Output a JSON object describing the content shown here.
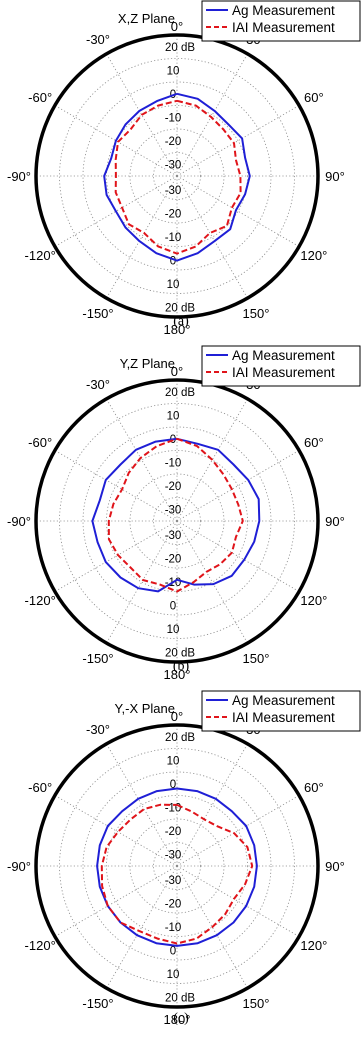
{
  "figure": {
    "captions": [
      "(a)",
      "(b)",
      "(c)"
    ]
  },
  "colors": {
    "ag": "#1f1fd6",
    "iai": "#e0141a",
    "grid": "#8a8a8a",
    "frame": "#000000"
  },
  "chart_data": [
    {
      "type": "polar",
      "title": "X,Z Plane",
      "angle_unit": "degrees",
      "angle_ticks": [
        "0°",
        "30°",
        "60°",
        "90°",
        "120°",
        "150°",
        "180°",
        "-150°",
        "-120°",
        "-90°",
        "-60°",
        "-30°"
      ],
      "radial_ticks_upper": [
        "20 dB",
        "10",
        "0",
        "-10",
        "-20",
        "-30"
      ],
      "radial_ticks_lower": [
        "-30",
        "-20",
        "-10",
        "0",
        "10",
        "20 dB"
      ],
      "rlim": [
        -40,
        20
      ],
      "grid": true,
      "legend_position": "top-right",
      "theta": [
        0,
        15,
        30,
        45,
        60,
        75,
        90,
        105,
        120,
        135,
        150,
        165,
        180,
        195,
        210,
        225,
        240,
        255,
        270,
        285,
        300,
        315,
        330,
        345
      ],
      "series": [
        {
          "name": "Ag Measurement",
          "color": "blue",
          "linestyle": "solid",
          "values": [
            -5,
            -6,
            -8,
            -9,
            -8,
            -10,
            -9,
            -10,
            -11,
            -8,
            -8,
            -6,
            -4,
            -6,
            -8,
            -9,
            -10,
            -9,
            -9,
            -11,
            -10,
            -9,
            -8,
            -7
          ]
        },
        {
          "name": "IAI Measurement",
          "color": "red",
          "linestyle": "dashed",
          "values": [
            -8,
            -9,
            -11,
            -12,
            -12,
            -14,
            -13,
            -12,
            -13,
            -10,
            -12,
            -9,
            -7,
            -9,
            -12,
            -11,
            -13,
            -13,
            -14,
            -13,
            -11,
            -12,
            -10,
            -9
          ]
        }
      ]
    },
    {
      "type": "polar",
      "title": "Y,Z Plane",
      "angle_unit": "degrees",
      "angle_ticks": [
        "0°",
        "30°",
        "60°",
        "90°",
        "120°",
        "150°",
        "180°",
        "-150°",
        "-120°",
        "-90°",
        "-60°",
        "-30°"
      ],
      "radial_ticks_upper": [
        "20 dB",
        "10",
        "0",
        "-10",
        "-20",
        "-30"
      ],
      "radial_ticks_lower": [
        "-30",
        "-20",
        "-10",
        "0",
        "10",
        "20 dB"
      ],
      "rlim": [
        -40,
        20
      ],
      "grid": true,
      "legend_position": "top-right",
      "theta": [
        0,
        15,
        30,
        45,
        60,
        75,
        90,
        105,
        120,
        135,
        150,
        165,
        180,
        195,
        210,
        225,
        240,
        255,
        270,
        285,
        300,
        315,
        330,
        345
      ],
      "series": [
        {
          "name": "Ag Measurement",
          "color": "blue",
          "linestyle": "solid",
          "values": [
            -5,
            -6,
            -5,
            -6,
            -5,
            -4,
            -5,
            -6,
            -7,
            -7,
            -9,
            -12,
            -15,
            -9,
            -7,
            -6,
            -5,
            -5,
            -4,
            -6,
            -5,
            -6,
            -5,
            -5
          ]
        },
        {
          "name": "IAI Measurement",
          "color": "red",
          "linestyle": "dashed",
          "values": [
            -5,
            -7,
            -10,
            -12,
            -13,
            -13,
            -12,
            -14,
            -13,
            -14,
            -15,
            -13,
            -10,
            -12,
            -11,
            -12,
            -11,
            -10,
            -11,
            -12,
            -13,
            -11,
            -9,
            -7
          ]
        }
      ]
    },
    {
      "type": "polar",
      "title": "Y,-X Plane",
      "angle_unit": "degrees",
      "angle_ticks": [
        "0°",
        "30°",
        "60°",
        "90°",
        "120°",
        "150°",
        "180°",
        "-150°",
        "-120°",
        "-90°",
        "-60°",
        "-30°"
      ],
      "radial_ticks_upper": [
        "20 dB",
        "10",
        "0",
        "-10",
        "-20",
        "-30"
      ],
      "radial_ticks_lower": [
        "-30",
        "-20",
        "-10",
        "0",
        "10",
        "20 dB"
      ],
      "rlim": [
        -40,
        20
      ],
      "grid": true,
      "legend_position": "top-right",
      "theta": [
        0,
        15,
        30,
        45,
        60,
        75,
        90,
        105,
        120,
        135,
        150,
        165,
        180,
        195,
        210,
        225,
        240,
        255,
        270,
        285,
        300,
        315,
        330,
        345
      ],
      "series": [
        {
          "name": "Ag Measurement",
          "color": "blue",
          "linestyle": "solid",
          "values": [
            -7,
            -7,
            -7,
            -7,
            -6,
            -6,
            -6,
            -6,
            -6,
            -6,
            -6,
            -6,
            -6,
            -6,
            -6,
            -6,
            -6,
            -6,
            -6,
            -6,
            -6,
            -7,
            -7,
            -7
          ]
        },
        {
          "name": "IAI Measurement",
          "color": "red",
          "linestyle": "dashed",
          "values": [
            -14,
            -16,
            -17,
            -16,
            -12,
            -9,
            -8,
            -10,
            -12,
            -11,
            -10,
            -8,
            -7,
            -8,
            -8,
            -6,
            -6,
            -7,
            -8,
            -9,
            -11,
            -12,
            -12,
            -13
          ]
        }
      ]
    }
  ]
}
